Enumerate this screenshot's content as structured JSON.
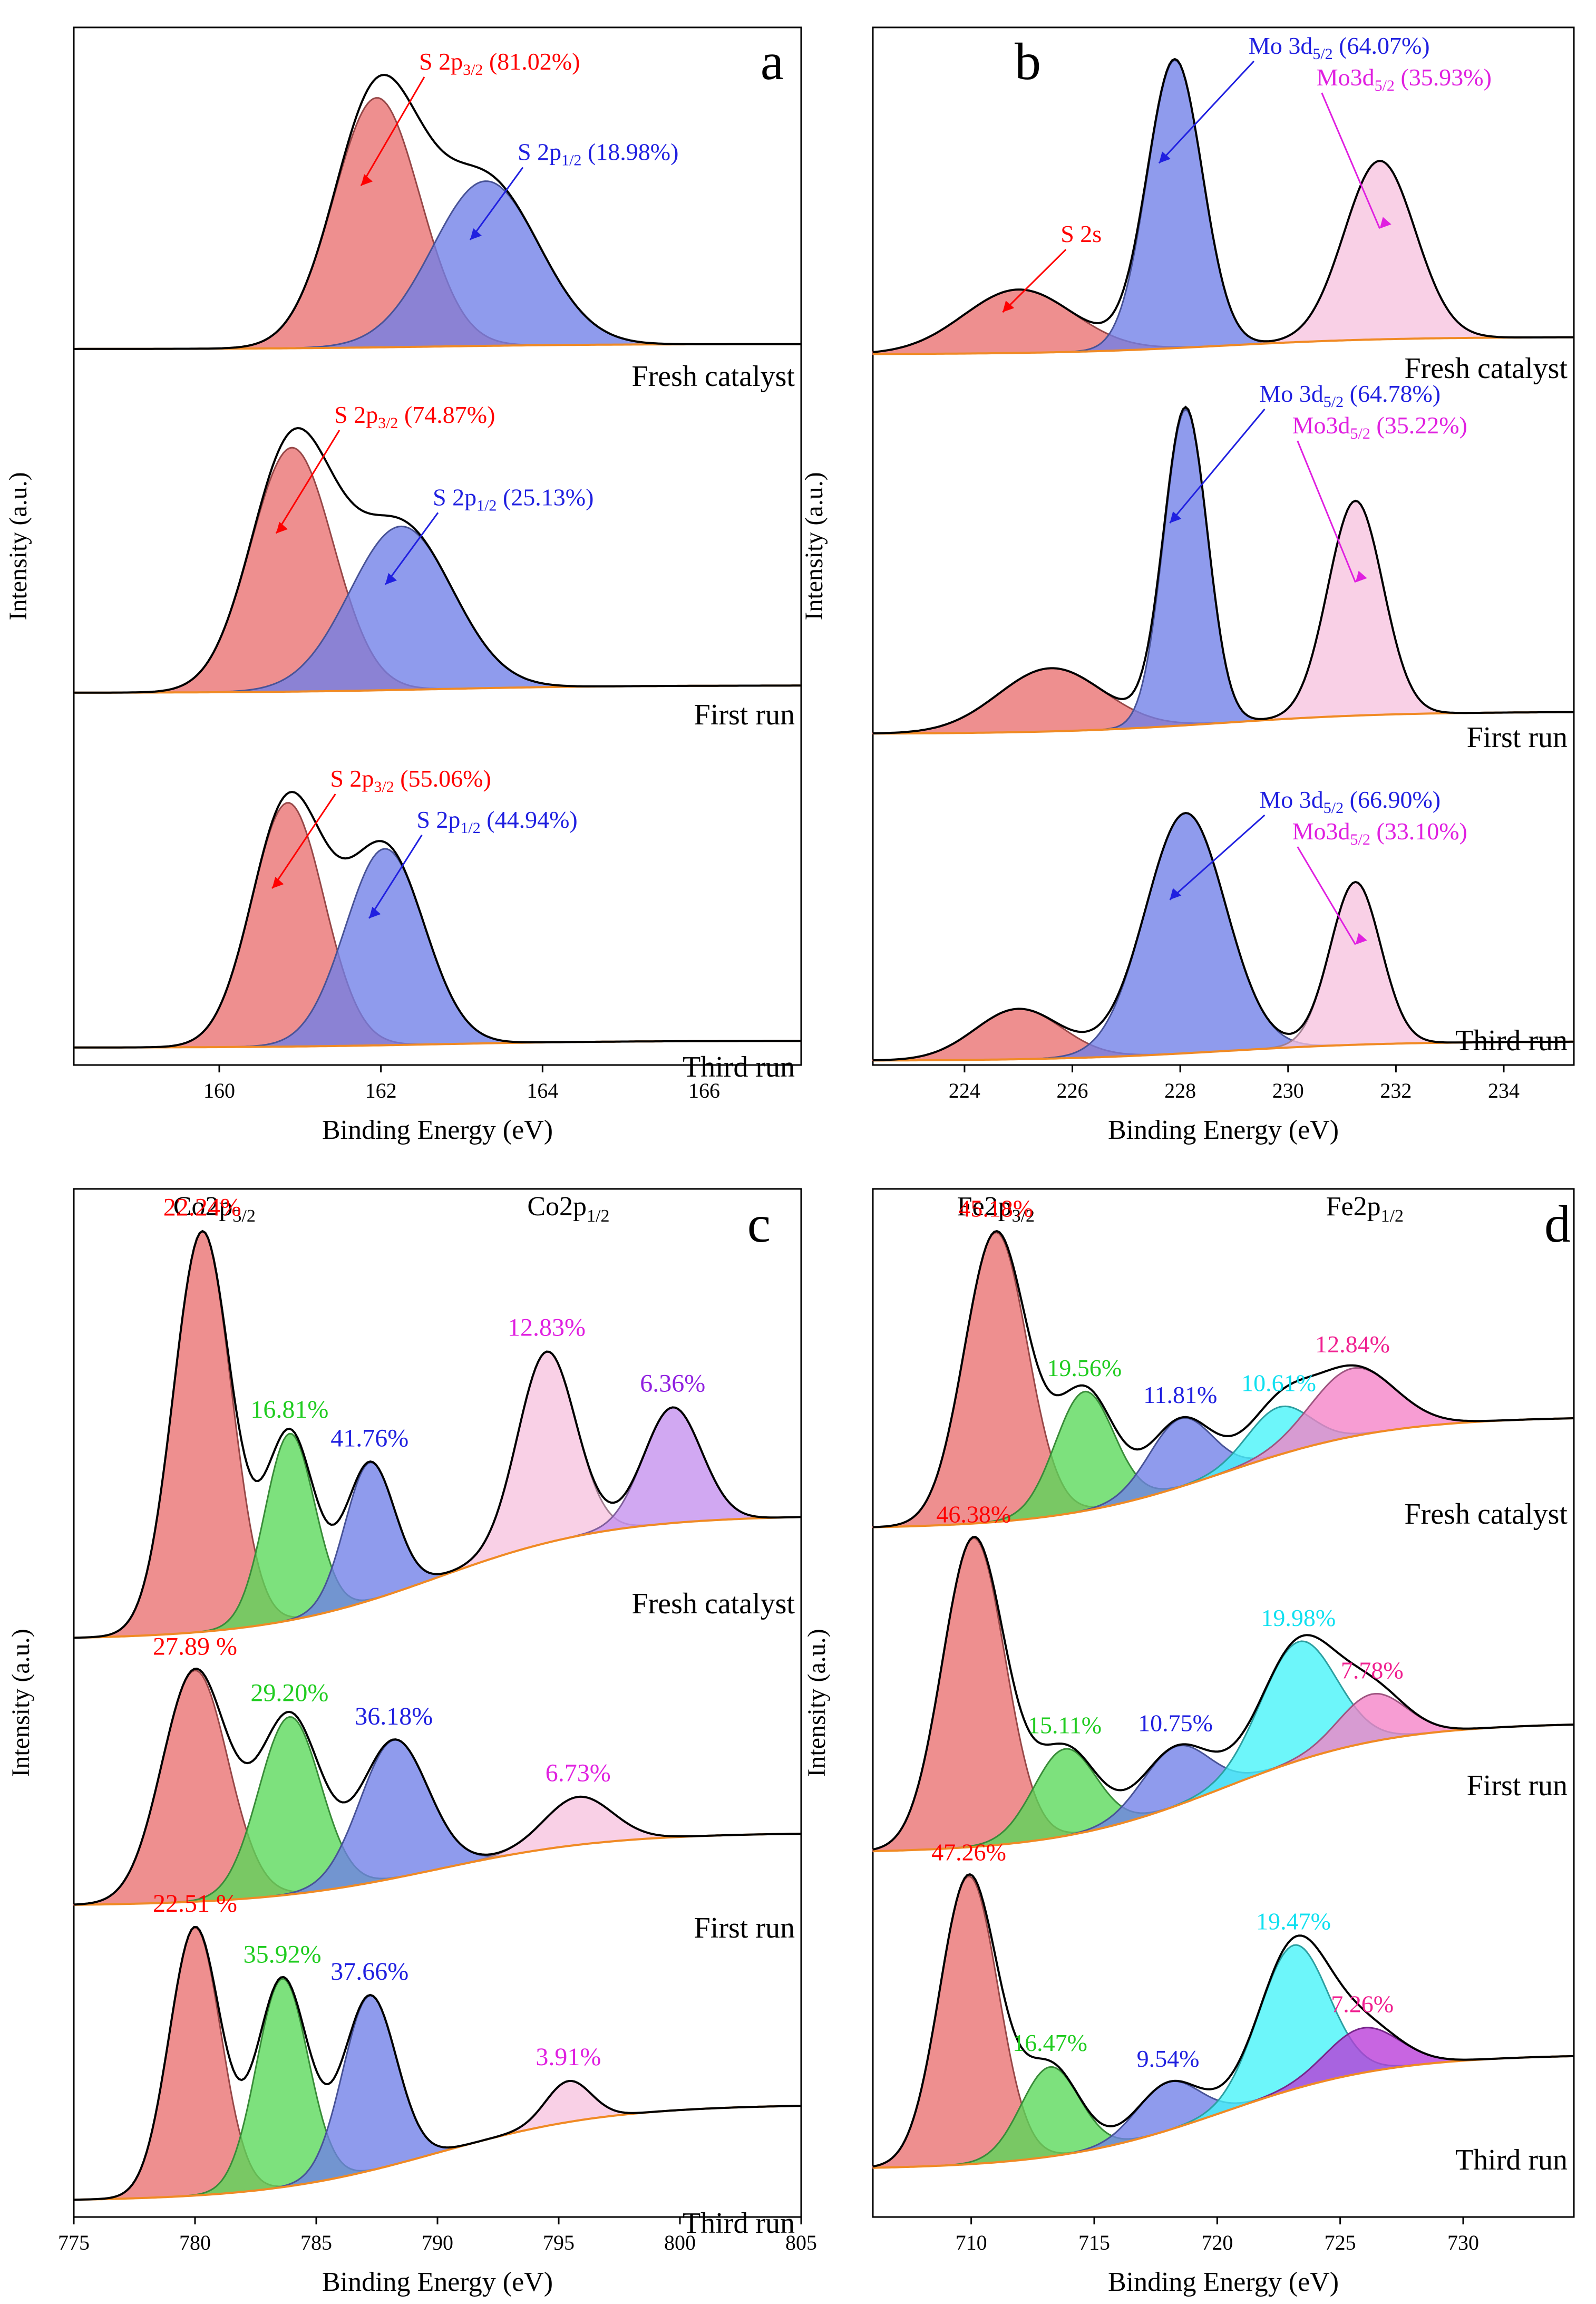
{
  "figure": {
    "description_free": true
  },
  "chart_data": [
    {
      "panel": "a",
      "type": "line",
      "xlabel": "Binding Energy (eV)",
      "ylabel": "Intensity (a.u.)",
      "xlim": [
        158.2,
        167.2
      ],
      "xticks": [
        160,
        162,
        164,
        166
      ],
      "curve_colors": {
        "envelope": "#000000",
        "baseline": "#f08a24"
      },
      "series": [
        {
          "name": "Fresh catalyst",
          "baseline": [
            0.0,
            0.02
          ],
          "peaks": [
            {
              "center": 161.95,
              "fwhm": 1.25,
              "height": 1.0,
              "color": "#e96f6f",
              "label": "S 2p",
              "sub": "3/2",
              "value": "(81.02%)",
              "label_color": "#ff0000"
            },
            {
              "center": 163.3,
              "fwhm": 1.55,
              "height": 0.66,
              "color": "#6f7fe8",
              "label": "S 2p",
              "sub": "1/2",
              "value": "(18.98%)",
              "label_color": "#2020e0"
            }
          ]
        },
        {
          "name": "First run",
          "baseline": [
            0.0,
            0.03
          ],
          "peaks": [
            {
              "center": 160.9,
              "fwhm": 1.2,
              "height": 1.0,
              "color": "#e96f6f",
              "label": "S 2p",
              "sub": "3/2",
              "value": "(74.87%)",
              "label_color": "#ff0000"
            },
            {
              "center": 162.25,
              "fwhm": 1.5,
              "height": 0.67,
              "color": "#6f7fe8",
              "label": "S 2p",
              "sub": "1/2",
              "value": "(25.13%)",
              "label_color": "#2020e0"
            }
          ]
        },
        {
          "name": "Third run",
          "baseline": [
            0.0,
            0.02
          ],
          "peaks": [
            {
              "center": 160.85,
              "fwhm": 1.05,
              "height": 0.72,
              "color": "#e96f6f",
              "label": "S 2p",
              "sub": "3/2",
              "value": "(55.06%)",
              "label_color": "#ff0000"
            },
            {
              "center": 162.05,
              "fwhm": 1.15,
              "height": 0.58,
              "color": "#6f7fe8",
              "label": "S 2p",
              "sub": "1/2",
              "value": "(44.94%)",
              "label_color": "#2020e0"
            }
          ]
        }
      ]
    },
    {
      "panel": "b",
      "type": "line",
      "xlabel": "Binding Energy (eV)",
      "ylabel": "Intensity (a.u.)",
      "xlim": [
        222.3,
        235.3
      ],
      "xticks": [
        224,
        226,
        228,
        230,
        232,
        234
      ],
      "series": [
        {
          "name": "Fresh catalyst",
          "baseline": [
            0.0,
            0.06
          ],
          "peaks": [
            {
              "center": 225.0,
              "fwhm": 2.4,
              "height": 0.22,
              "color": "#e96f6f",
              "label": "S 2s",
              "sub": "",
              "value": "",
              "label_color": "#ff0000"
            },
            {
              "center": 227.9,
              "fwhm": 1.2,
              "height": 1.0,
              "color": "#6f7fe8",
              "label": "Mo 3d",
              "sub": "5/2",
              "value": "(64.07%)",
              "label_color": "#2020e0"
            },
            {
              "center": 231.7,
              "fwhm": 1.55,
              "height": 0.62,
              "color": "#f7c3df",
              "label": "Mo3d",
              "sub": "5/2",
              "value": "(35.93%)",
              "label_color": "#e020e0"
            }
          ]
        },
        {
          "name": "First run",
          "baseline": [
            0.0,
            0.07
          ],
          "peaks": [
            {
              "center": 225.6,
              "fwhm": 2.3,
              "height": 0.2,
              "color": "#e96f6f",
              "label": "",
              "sub": "",
              "value": "",
              "label_color": "#ff0000"
            },
            {
              "center": 228.1,
              "fwhm": 0.95,
              "height": 1.0,
              "color": "#6f7fe8",
              "label": "Mo 3d",
              "sub": "5/2",
              "value": "(64.78%)",
              "label_color": "#2020e0"
            },
            {
              "center": 231.25,
              "fwhm": 1.2,
              "height": 0.68,
              "color": "#f7c3df",
              "label": "Mo3d",
              "sub": "5/2",
              "value": "(35.22%)",
              "label_color": "#e020e0"
            }
          ]
        },
        {
          "name": "Third run",
          "baseline": [
            0.0,
            0.05
          ],
          "peaks": [
            {
              "center": 225.0,
              "fwhm": 1.9,
              "height": 0.13,
              "color": "#e96f6f",
              "label": "",
              "sub": "",
              "value": "",
              "label_color": "#ff0000"
            },
            {
              "center": 228.1,
              "fwhm": 1.75,
              "height": 0.62,
              "color": "#6f7fe8",
              "label": "Mo 3d",
              "sub": "5/2",
              "value": "(66.90%)",
              "label_color": "#2020e0"
            },
            {
              "center": 231.25,
              "fwhm": 1.1,
              "height": 0.42,
              "color": "#f7c3df",
              "label": "Mo3d",
              "sub": "5/2",
              "value": "(33.10%)",
              "label_color": "#e020e0"
            }
          ]
        }
      ]
    },
    {
      "panel": "c",
      "type": "line",
      "xlabel": "Binding Energy (eV)",
      "ylabel": "Intensity (a.u.)",
      "xlim": [
        775,
        805
      ],
      "xticks": [
        775,
        780,
        785,
        790,
        795,
        800,
        805
      ],
      "group_labels": [
        {
          "text": "Co2p",
          "sub": "3/2",
          "at": 780.8
        },
        {
          "text": "Co2p",
          "sub": "1/2",
          "at": 795.4
        }
      ],
      "series": [
        {
          "name": "Fresh catalyst",
          "baseline": [
            0.0,
            0.28
          ],
          "peaks": [
            {
              "center": 780.3,
              "fwhm": 2.8,
              "height": 0.9,
              "color": "#e96f6f",
              "label": "22.24%",
              "sub": "",
              "value": "",
              "label_color": "#ff0000"
            },
            {
              "center": 783.9,
              "fwhm": 2.4,
              "height": 0.42,
              "color": "#58d858",
              "label": "16.81%",
              "sub": "",
              "value": "",
              "label_color": "#20cc20"
            },
            {
              "center": 787.2,
              "fwhm": 2.4,
              "height": 0.31,
              "color": "#6f7fe8",
              "label": "41.76%",
              "sub": "",
              "value": "",
              "label_color": "#2020e0"
            },
            {
              "center": 794.5,
              "fwhm": 2.8,
              "height": 0.43,
              "color": "#f7c3df",
              "label": "12.83%",
              "sub": "",
              "value": "",
              "label_color": "#e020e0"
            },
            {
              "center": 799.7,
              "fwhm": 2.8,
              "height": 0.26,
              "color": "#c490ee",
              "label": "6.36%",
              "sub": "",
              "value": "",
              "label_color": "#9020e0"
            }
          ]
        },
        {
          "name": "First run",
          "baseline": [
            0.0,
            0.26
          ],
          "peaks": [
            {
              "center": 780.0,
              "fwhm": 3.2,
              "height": 0.82,
              "color": "#e96f6f",
              "label": "27.89 %",
              "sub": "",
              "value": "",
              "label_color": "#ff0000"
            },
            {
              "center": 783.9,
              "fwhm": 3.0,
              "height": 0.63,
              "color": "#58d858",
              "label": "29.20%",
              "sub": "",
              "value": "",
              "label_color": "#20cc20"
            },
            {
              "center": 788.2,
              "fwhm": 3.3,
              "height": 0.49,
              "color": "#6f7fe8",
              "label": "36.18%",
              "sub": "",
              "value": "",
              "label_color": "#2020e0"
            },
            {
              "center": 795.8,
              "fwhm": 3.3,
              "height": 0.17,
              "color": "#f7c3df",
              "label": "6.73%",
              "sub": "",
              "value": "",
              "label_color": "#e020e0"
            }
          ]
        },
        {
          "name": "Third run",
          "baseline": [
            0.0,
            0.26
          ],
          "peaks": [
            {
              "center": 780.0,
              "fwhm": 2.5,
              "height": 0.72,
              "color": "#e96f6f",
              "label": "22.51 %",
              "sub": "",
              "value": "",
              "label_color": "#ff0000"
            },
            {
              "center": 783.6,
              "fwhm": 2.5,
              "height": 0.56,
              "color": "#58d858",
              "label": "35.92%",
              "sub": "",
              "value": "",
              "label_color": "#20cc20"
            },
            {
              "center": 787.2,
              "fwhm": 2.6,
              "height": 0.47,
              "color": "#6f7fe8",
              "label": "37.66%",
              "sub": "",
              "value": "",
              "label_color": "#2020e0"
            },
            {
              "center": 795.4,
              "fwhm": 2.2,
              "height": 0.11,
              "color": "#f7c3df",
              "label": "3.91%",
              "sub": "",
              "value": "",
              "label_color": "#e020e0"
            }
          ]
        }
      ]
    },
    {
      "panel": "d",
      "type": "line",
      "xlabel": "Binding Energy (eV)",
      "ylabel": "Intensity (a.u.)",
      "xlim": [
        706,
        734.5
      ],
      "xticks": [
        710,
        715,
        720,
        725,
        730
      ],
      "group_labels": [
        {
          "text": "Fe2p",
          "sub": "3/2",
          "at": 711.0
        },
        {
          "text": "Fe2p",
          "sub": "1/2",
          "at": 726.0
        }
      ],
      "series": [
        {
          "name": "Fresh catalyst",
          "baseline": [
            0.0,
            0.33
          ],
          "peaks": [
            {
              "center": 711.0,
              "fwhm": 3.0,
              "height": 0.85,
              "color": "#e96f6f",
              "label": "45.18%",
              "sub": "",
              "value": "",
              "label_color": "#ff0000"
            },
            {
              "center": 714.6,
              "fwhm": 2.8,
              "height": 0.35,
              "color": "#58d858",
              "label": "19.56%",
              "sub": "",
              "value": "",
              "label_color": "#20cc20"
            },
            {
              "center": 718.5,
              "fwhm": 3.0,
              "height": 0.2,
              "color": "#6f7fe8",
              "label": "11.81%",
              "sub": "",
              "value": "",
              "label_color": "#2020e0"
            },
            {
              "center": 722.5,
              "fwhm": 3.0,
              "height": 0.14,
              "color": "#44f4f8",
              "label": "10.61%",
              "sub": "",
              "value": "",
              "label_color": "#10e0f0"
            },
            {
              "center": 725.5,
              "fwhm": 4.0,
              "height": 0.2,
              "color": "#f582c6",
              "label": "12.84%",
              "sub": "",
              "value": "",
              "label_color": "#f02090"
            }
          ]
        },
        {
          "name": "First run",
          "baseline": [
            0.0,
            0.33
          ],
          "peaks": [
            {
              "center": 710.1,
              "fwhm": 3.0,
              "height": 0.78,
              "color": "#e96f6f",
              "label": "46.38%",
              "sub": "",
              "value": "",
              "label_color": "#ff0000"
            },
            {
              "center": 713.8,
              "fwhm": 3.0,
              "height": 0.22,
              "color": "#58d858",
              "label": "15.11%",
              "sub": "",
              "value": "",
              "label_color": "#20cc20"
            },
            {
              "center": 718.3,
              "fwhm": 3.2,
              "height": 0.15,
              "color": "#6f7fe8",
              "label": "10.75%",
              "sub": "",
              "value": "",
              "label_color": "#2020e0"
            },
            {
              "center": 723.3,
              "fwhm": 3.6,
              "height": 0.3,
              "color": "#44f4f8",
              "label": "19.98%",
              "sub": "",
              "value": "",
              "label_color": "#10e0f0"
            },
            {
              "center": 726.3,
              "fwhm": 3.2,
              "height": 0.12,
              "color": "#f582c6",
              "label": "7.78%",
              "sub": "",
              "value": "",
              "label_color": "#f02090"
            }
          ]
        },
        {
          "name": "Third run",
          "baseline": [
            0.0,
            0.36
          ],
          "peaks": [
            {
              "center": 709.9,
              "fwhm": 2.8,
              "height": 0.9,
              "color": "#e96f6f",
              "label": "47.26%",
              "sub": "",
              "value": "",
              "label_color": "#ff0000"
            },
            {
              "center": 713.2,
              "fwhm": 2.8,
              "height": 0.28,
              "color": "#58d858",
              "label": "16.47%",
              "sub": "",
              "value": "",
              "label_color": "#20cc20"
            },
            {
              "center": 718.0,
              "fwhm": 3.0,
              "height": 0.15,
              "color": "#6f7fe8",
              "label": "9.54%",
              "sub": "",
              "value": "",
              "label_color": "#2020e0"
            },
            {
              "center": 723.1,
              "fwhm": 3.3,
              "height": 0.45,
              "color": "#44f4f8",
              "label": "19.47%",
              "sub": "",
              "value": "",
              "label_color": "#10e0f0"
            },
            {
              "center": 725.9,
              "fwhm": 3.5,
              "height": 0.14,
              "color": "#b83ad8",
              "label": "7.26%",
              "sub": "",
              "value": "",
              "label_color": "#f02090"
            }
          ]
        }
      ]
    }
  ]
}
